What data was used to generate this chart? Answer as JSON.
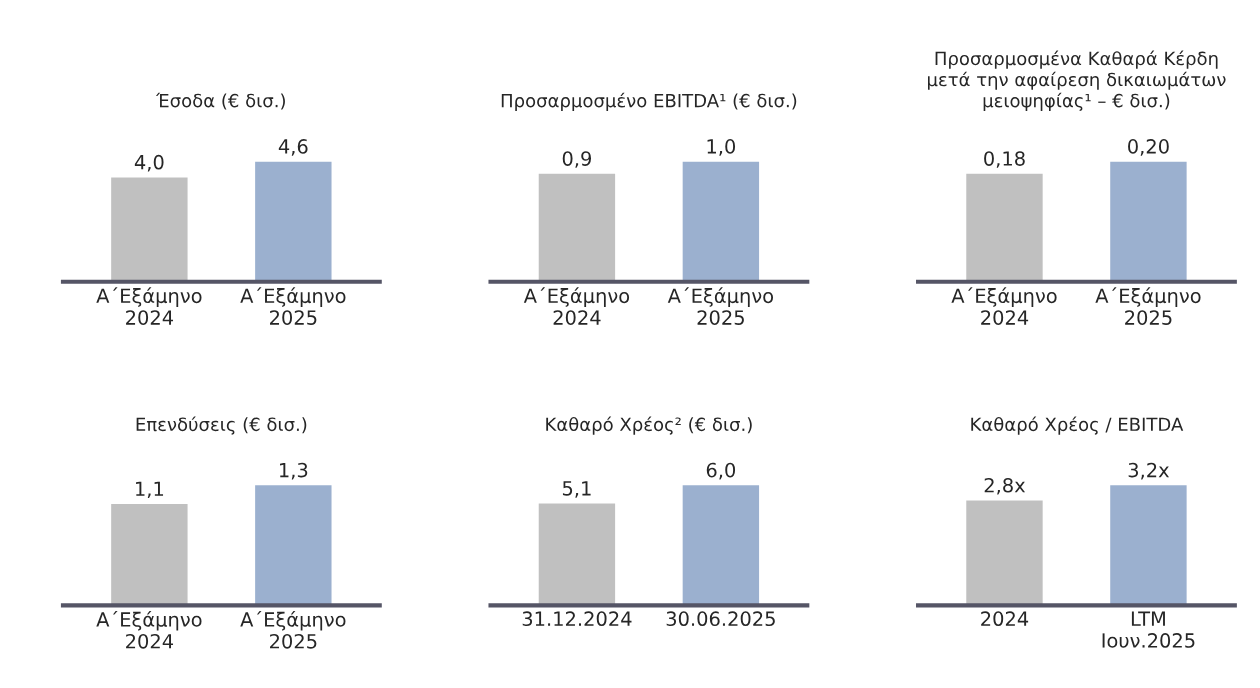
{
  "chart_data": [
    {
      "type": "bar",
      "title": "Έσοδα (€ δισ.)",
      "categories": [
        "Α΄Εξάμηνο\n2024",
        "Α΄Εξάμηνο\n2025"
      ],
      "values": [
        4.0,
        4.6
      ],
      "value_labels": [
        "4,0",
        "4,6"
      ],
      "colors": [
        "#c0c0c0",
        "#9bb0cf"
      ]
    },
    {
      "type": "bar",
      "title": "Προσαρμοσμένο EBITDA¹ (€ δισ.)",
      "categories": [
        "Α΄Εξάμηνο\n2024",
        "Α΄Εξάμηνο\n2025"
      ],
      "values": [
        0.9,
        1.0
      ],
      "value_labels": [
        "0,9",
        "1,0"
      ],
      "colors": [
        "#c0c0c0",
        "#9bb0cf"
      ]
    },
    {
      "type": "bar",
      "title": "Προσαρμοσμένα Καθαρά Κέρδη\nμετά την αφαίρεση δικαιωμάτων\nμειοψηφίας¹ – € δισ.)",
      "categories": [
        "Α΄Εξάμηνο\n2024",
        "Α΄Εξάμηνο\n2025"
      ],
      "values": [
        0.18,
        0.2
      ],
      "value_labels": [
        "0,18",
        "0,20"
      ],
      "colors": [
        "#c0c0c0",
        "#9bb0cf"
      ]
    },
    {
      "type": "bar",
      "title": "Επενδύσεις (€ δισ.)",
      "categories": [
        "Α΄Εξάμηνο\n2024",
        "Α΄Εξάμηνο\n2025"
      ],
      "values": [
        1.1,
        1.3
      ],
      "value_labels": [
        "1,1",
        "1,3"
      ],
      "colors": [
        "#c0c0c0",
        "#9bb0cf"
      ]
    },
    {
      "type": "bar",
      "title": "Καθαρό Χρέος² (€ δισ.)",
      "categories": [
        "31.12.2024",
        "30.06.2025"
      ],
      "values": [
        5.1,
        6.0
      ],
      "value_labels": [
        "5,1",
        "6,0"
      ],
      "colors": [
        "#c0c0c0",
        "#9bb0cf"
      ]
    },
    {
      "type": "bar",
      "title": "Καθαρό Χρέος / EBITDA",
      "categories": [
        "2024",
        "LTM\nΙουν.2025"
      ],
      "values": [
        2.8,
        3.2
      ],
      "value_labels": [
        "2,8x",
        "3,2x"
      ],
      "colors": [
        "#c0c0c0",
        "#9bb0cf"
      ]
    }
  ]
}
